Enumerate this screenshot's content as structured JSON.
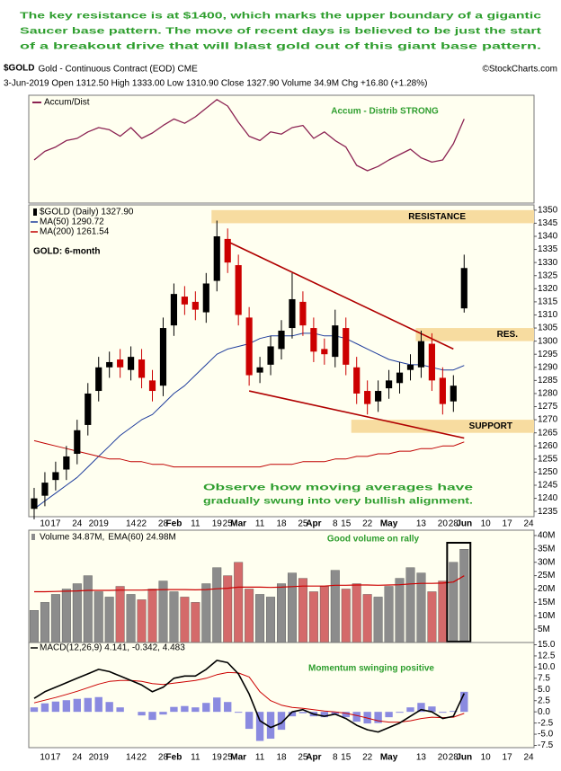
{
  "chart_data": [
    {
      "type": "line",
      "commentary": [
        "The key resistance is at $1400, which marks the upper boundary of a gigantic",
        "Saucer base pattern. The move of recent days is believed to be just the start",
        "of a breakout drive that will blast gold out of this giant base pattern."
      ],
      "symbol": "$GOLD",
      "title": "Gold - Continuous Contract (EOD) CME",
      "source": "©StockCharts.com",
      "subtitle": "3-Jun-2019 Open 1312.50 High 1333.00 Low 1310.90 Close 1327.90 Volume 34.9M Chg +16.80 (+1.28%)",
      "annotation": "Accum - Distrib STRONG",
      "ylim": [
        0,
        100
      ],
      "series": [
        {
          "name": "Accum/Dist",
          "color": "#8b2252",
          "values": [
            40,
            48,
            52,
            58,
            60,
            66,
            70,
            68,
            62,
            70,
            60,
            65,
            72,
            78,
            74,
            80,
            88,
            96,
            90,
            75,
            62,
            58,
            66,
            64,
            70,
            72,
            60,
            66,
            58,
            52,
            35,
            30,
            34,
            40,
            45,
            50,
            42,
            38,
            40,
            55,
            78,
            null,
            null,
            null,
            null,
            null,
            null
          ]
        }
      ]
    },
    {
      "type": "candlestick",
      "categories": [
        null,
        "10",
        "17",
        null,
        "24",
        null,
        "2019",
        null,
        null,
        "14",
        "22",
        null,
        "28",
        "Feb",
        null,
        "11",
        null,
        "19",
        "25",
        "Mar",
        null,
        "11",
        null,
        "18",
        null,
        "25",
        "Apr",
        null,
        "8",
        "15",
        null,
        "22",
        null,
        "May",
        null,
        null,
        "13",
        null,
        "20",
        "28",
        "Jun",
        null,
        "10",
        null,
        "17",
        null,
        "24"
      ],
      "name": "$GOLD (Daily) 1327.90",
      "up_color": "#000000",
      "down_color": "#cc0000",
      "open": [
        1236,
        1241,
        1247,
        1251,
        1257,
        1268,
        1281,
        1290,
        1293,
        1289,
        1293,
        1285,
        1283,
        1306,
        1317,
        1315,
        1311,
        1323,
        1339,
        1329,
        1309,
        1288,
        1291,
        1297,
        1305,
        1315,
        1305,
        1297,
        1294,
        1305,
        1290,
        1281,
        1277,
        1282,
        1284,
        1289,
        1290,
        1299,
        1286,
        1277,
        1312.5,
        null,
        null,
        null,
        null,
        null,
        null
      ],
      "high": [
        1244,
        1250,
        1254,
        1260,
        1270,
        1284,
        1294,
        1296,
        1297,
        1298,
        1297,
        1289,
        1309,
        1322,
        1321,
        1319,
        1326,
        1346,
        1343,
        1333,
        1313,
        1294,
        1302,
        1308,
        1326,
        1319,
        1309,
        1301,
        1312,
        1309,
        1294,
        1285,
        1285,
        1289,
        1292,
        1295,
        1304,
        1303,
        1290,
        1287,
        1333,
        null,
        null,
        null,
        null,
        null,
        null
      ],
      "low": [
        1232,
        1237,
        1243,
        1247,
        1253,
        1264,
        1277,
        1286,
        1286,
        1285,
        1282,
        1277,
        1279,
        1302,
        1310,
        1308,
        1307,
        1319,
        1326,
        1306,
        1283,
        1284,
        1287,
        1293,
        1301,
        1302,
        1292,
        1291,
        1290,
        1287,
        1276,
        1272,
        1273,
        1278,
        1280,
        1285,
        1286,
        1281,
        1272,
        1273,
        1310.9,
        null,
        null,
        null,
        null,
        null,
        null
      ],
      "close": [
        1240,
        1246,
        1250,
        1256,
        1266,
        1280,
        1290,
        1292,
        1290,
        1294,
        1286,
        1281,
        1305,
        1318,
        1314,
        1312,
        1322,
        1340,
        1330,
        1310,
        1287,
        1290,
        1298,
        1304,
        1316,
        1306,
        1296,
        1295,
        1306,
        1291,
        1280,
        1276,
        1281,
        1285,
        1288,
        1291,
        1300,
        1285,
        1276,
        1283,
        1327.9,
        null,
        null,
        null,
        null,
        null,
        null
      ],
      "series": [
        {
          "name": "MA(50) 1290.72",
          "color": "#1e3c9c",
          "values": [
            1236,
            1239,
            1242,
            1245,
            1248,
            1252,
            1256,
            1260,
            1264,
            1267,
            1270,
            1272,
            1276,
            1280,
            1283,
            1287,
            1291,
            1295,
            1297,
            1298,
            1299,
            1301,
            1302,
            1302,
            1302,
            1303,
            1303,
            1302,
            1302,
            1301,
            1299,
            1297,
            1295,
            1293,
            1292,
            1291,
            1291,
            1290,
            1289,
            1289,
            1290.72,
            null,
            null,
            null,
            null,
            null,
            null
          ]
        },
        {
          "name": "MA(200) 1261.54",
          "color": "#c00000",
          "values": [
            1262,
            1261,
            1260,
            1259,
            1258,
            1257,
            1256,
            1255,
            1255,
            1254,
            1254,
            1253,
            1253,
            1252,
            1252,
            1252,
            1252,
            1252,
            1252,
            1252,
            1252,
            1252,
            1253,
            1253,
            1253,
            1254,
            1254,
            1254,
            1255,
            1255,
            1256,
            1256,
            1257,
            1257,
            1258,
            1258,
            1259,
            1259,
            1260,
            1260,
            1261.54,
            null,
            null,
            null,
            null,
            null,
            null
          ]
        }
      ],
      "ylim": [
        1233,
        1352
      ],
      "yticks": [
        1235,
        1240,
        1245,
        1250,
        1255,
        1260,
        1265,
        1270,
        1275,
        1280,
        1285,
        1290,
        1295,
        1300,
        1305,
        1310,
        1315,
        1320,
        1325,
        1330,
        1335,
        1340,
        1345,
        1350
      ],
      "bands": [
        {
          "label": "RESISTANCE",
          "from": 1345,
          "to": 1350,
          "start": 17
        },
        {
          "label": "RES.",
          "from": 1300,
          "to": 1305,
          "start": 36
        },
        {
          "label": "SUPPORT",
          "from": 1265,
          "to": 1270,
          "start": 30
        }
      ],
      "band_color": "#f7dca0",
      "trendlines": [
        {
          "color": "#b00000",
          "points": [
            [
              18,
              1338
            ],
            [
              39,
              1297
            ]
          ]
        },
        {
          "color": "#b00000",
          "points": [
            [
              20,
              1281
            ],
            [
              40,
              1263
            ]
          ]
        }
      ],
      "annotations": [
        "GOLD: 6-month",
        "Observe how moving averages have",
        "gradually swung into very bullish alignment."
      ]
    },
    {
      "type": "bar",
      "up_color": "#8c8c8c",
      "down_color": "#d46a6a",
      "series": [
        {
          "name": "Volume 34.87M,",
          "values": [
            12,
            15,
            18,
            20,
            22,
            25,
            19,
            17,
            21,
            18,
            16,
            20,
            23,
            19,
            17,
            15,
            22,
            28,
            25,
            30,
            20,
            18,
            17,
            22,
            26,
            24,
            19,
            21,
            27,
            20,
            22,
            18,
            17,
            21,
            24,
            28,
            26,
            19,
            23,
            30,
            34.87,
            null,
            null,
            null,
            null,
            null,
            null
          ]
        },
        {
          "name": "EMA(60) 24.98M",
          "color": "#cc0000",
          "values": [
            19,
            19,
            19.1,
            19.2,
            19.3,
            19.5,
            19.5,
            19.5,
            19.6,
            19.6,
            19.6,
            19.7,
            19.8,
            19.8,
            19.8,
            19.7,
            19.8,
            20.1,
            20.3,
            20.7,
            20.7,
            20.7,
            20.6,
            20.7,
            20.9,
            21.1,
            21.1,
            21.1,
            21.4,
            21.4,
            21.5,
            21.5,
            21.4,
            21.5,
            21.6,
            21.9,
            22.1,
            22.1,
            22.2,
            22.6,
            24.98,
            null,
            null,
            null,
            null,
            null,
            null
          ]
        }
      ],
      "ylim": [
        0,
        42
      ],
      "yticks": [
        {
          "value": 5,
          "label": "5M"
        },
        {
          "value": 10,
          "label": "10M"
        },
        {
          "value": 15,
          "label": "15M"
        },
        {
          "value": 20,
          "label": "20M"
        },
        {
          "value": 25,
          "label": "25M"
        },
        {
          "value": 30,
          "label": "30M"
        },
        {
          "value": 35,
          "label": "35M"
        },
        {
          "value": 40,
          "label": "40M"
        }
      ],
      "annotation": "Good volume on rally"
    },
    {
      "type": "macd",
      "categories": [
        null,
        "10",
        "17",
        null,
        "24",
        null,
        "2019",
        null,
        null,
        "14",
        "22",
        null,
        "28",
        "Feb",
        null,
        "11",
        null,
        "19",
        "25",
        "Mar",
        null,
        "11",
        null,
        "18",
        null,
        "25",
        "Apr",
        null,
        "8",
        "15",
        null,
        "22",
        null,
        "May",
        null,
        null,
        "13",
        null,
        "20",
        "28",
        "Jun",
        null,
        "10",
        null,
        "17",
        null,
        "24"
      ],
      "legend": "MACD(12,26,9) 4.141, -0.342, 4.483",
      "series": [
        {
          "color": "#000000",
          "values": [
            3,
            4.5,
            5.5,
            6.5,
            7.5,
            8.5,
            9.5,
            9,
            8,
            7,
            6,
            4.5,
            5.5,
            7.5,
            8,
            8,
            9.5,
            11.5,
            11,
            8.5,
            4,
            -2,
            -3.5,
            -2.5,
            0,
            0.5,
            -0.5,
            -1,
            -0.5,
            -1.5,
            -3,
            -4,
            -4.5,
            -3.5,
            -2.5,
            -1,
            0.5,
            0,
            -1.5,
            -1,
            4.141,
            null,
            null,
            null,
            null,
            null,
            null
          ]
        },
        {
          "color": "#cc0000",
          "values": [
            2,
            2.6,
            3.2,
            3.9,
            4.6,
            5.4,
            6.2,
            6.8,
            7,
            7,
            6.8,
            6.3,
            6.1,
            6.4,
            6.7,
            7,
            7.5,
            8.3,
            8.8,
            8.7,
            7.8,
            4.5,
            2.5,
            1.5,
            1,
            0.8,
            0.5,
            0.2,
            0,
            -0.3,
            -0.8,
            -1.4,
            -2,
            -2.3,
            -2.3,
            -2,
            -1.5,
            -1.2,
            -1.3,
            -1.2,
            -0.342,
            null,
            null,
            null,
            null,
            null,
            null
          ]
        },
        {
          "color": "#8a8ae0",
          "values": [
            1,
            1.9,
            2.3,
            2.6,
            2.9,
            3.1,
            3.3,
            2.2,
            1,
            0,
            -0.8,
            -1.8,
            -0.6,
            1.1,
            1.3,
            1,
            2,
            3.2,
            2.2,
            -0.2,
            -3.8,
            -6.5,
            -6,
            -4,
            -1,
            -0.3,
            -1,
            -1.2,
            -0.5,
            -1.2,
            -2.2,
            -2.6,
            -2.5,
            -1.2,
            -0.2,
            1,
            2,
            1.2,
            -0.2,
            0.2,
            4.483,
            null,
            null,
            null,
            null,
            null,
            null
          ]
        }
      ],
      "ylim": [
        -8,
        15.5
      ],
      "yticks": [
        {
          "value": 15,
          "label": "15.0"
        },
        12.5,
        {
          "value": 10,
          "label": "10.0"
        },
        7.5,
        {
          "value": 5,
          "label": "5.0"
        },
        2.5,
        {
          "value": 0,
          "label": "0.0"
        },
        -2.5,
        {
          "value": -5,
          "label": "-5.0"
        },
        -7.5
      ],
      "annotation": "Momentum swinging positive"
    }
  ]
}
